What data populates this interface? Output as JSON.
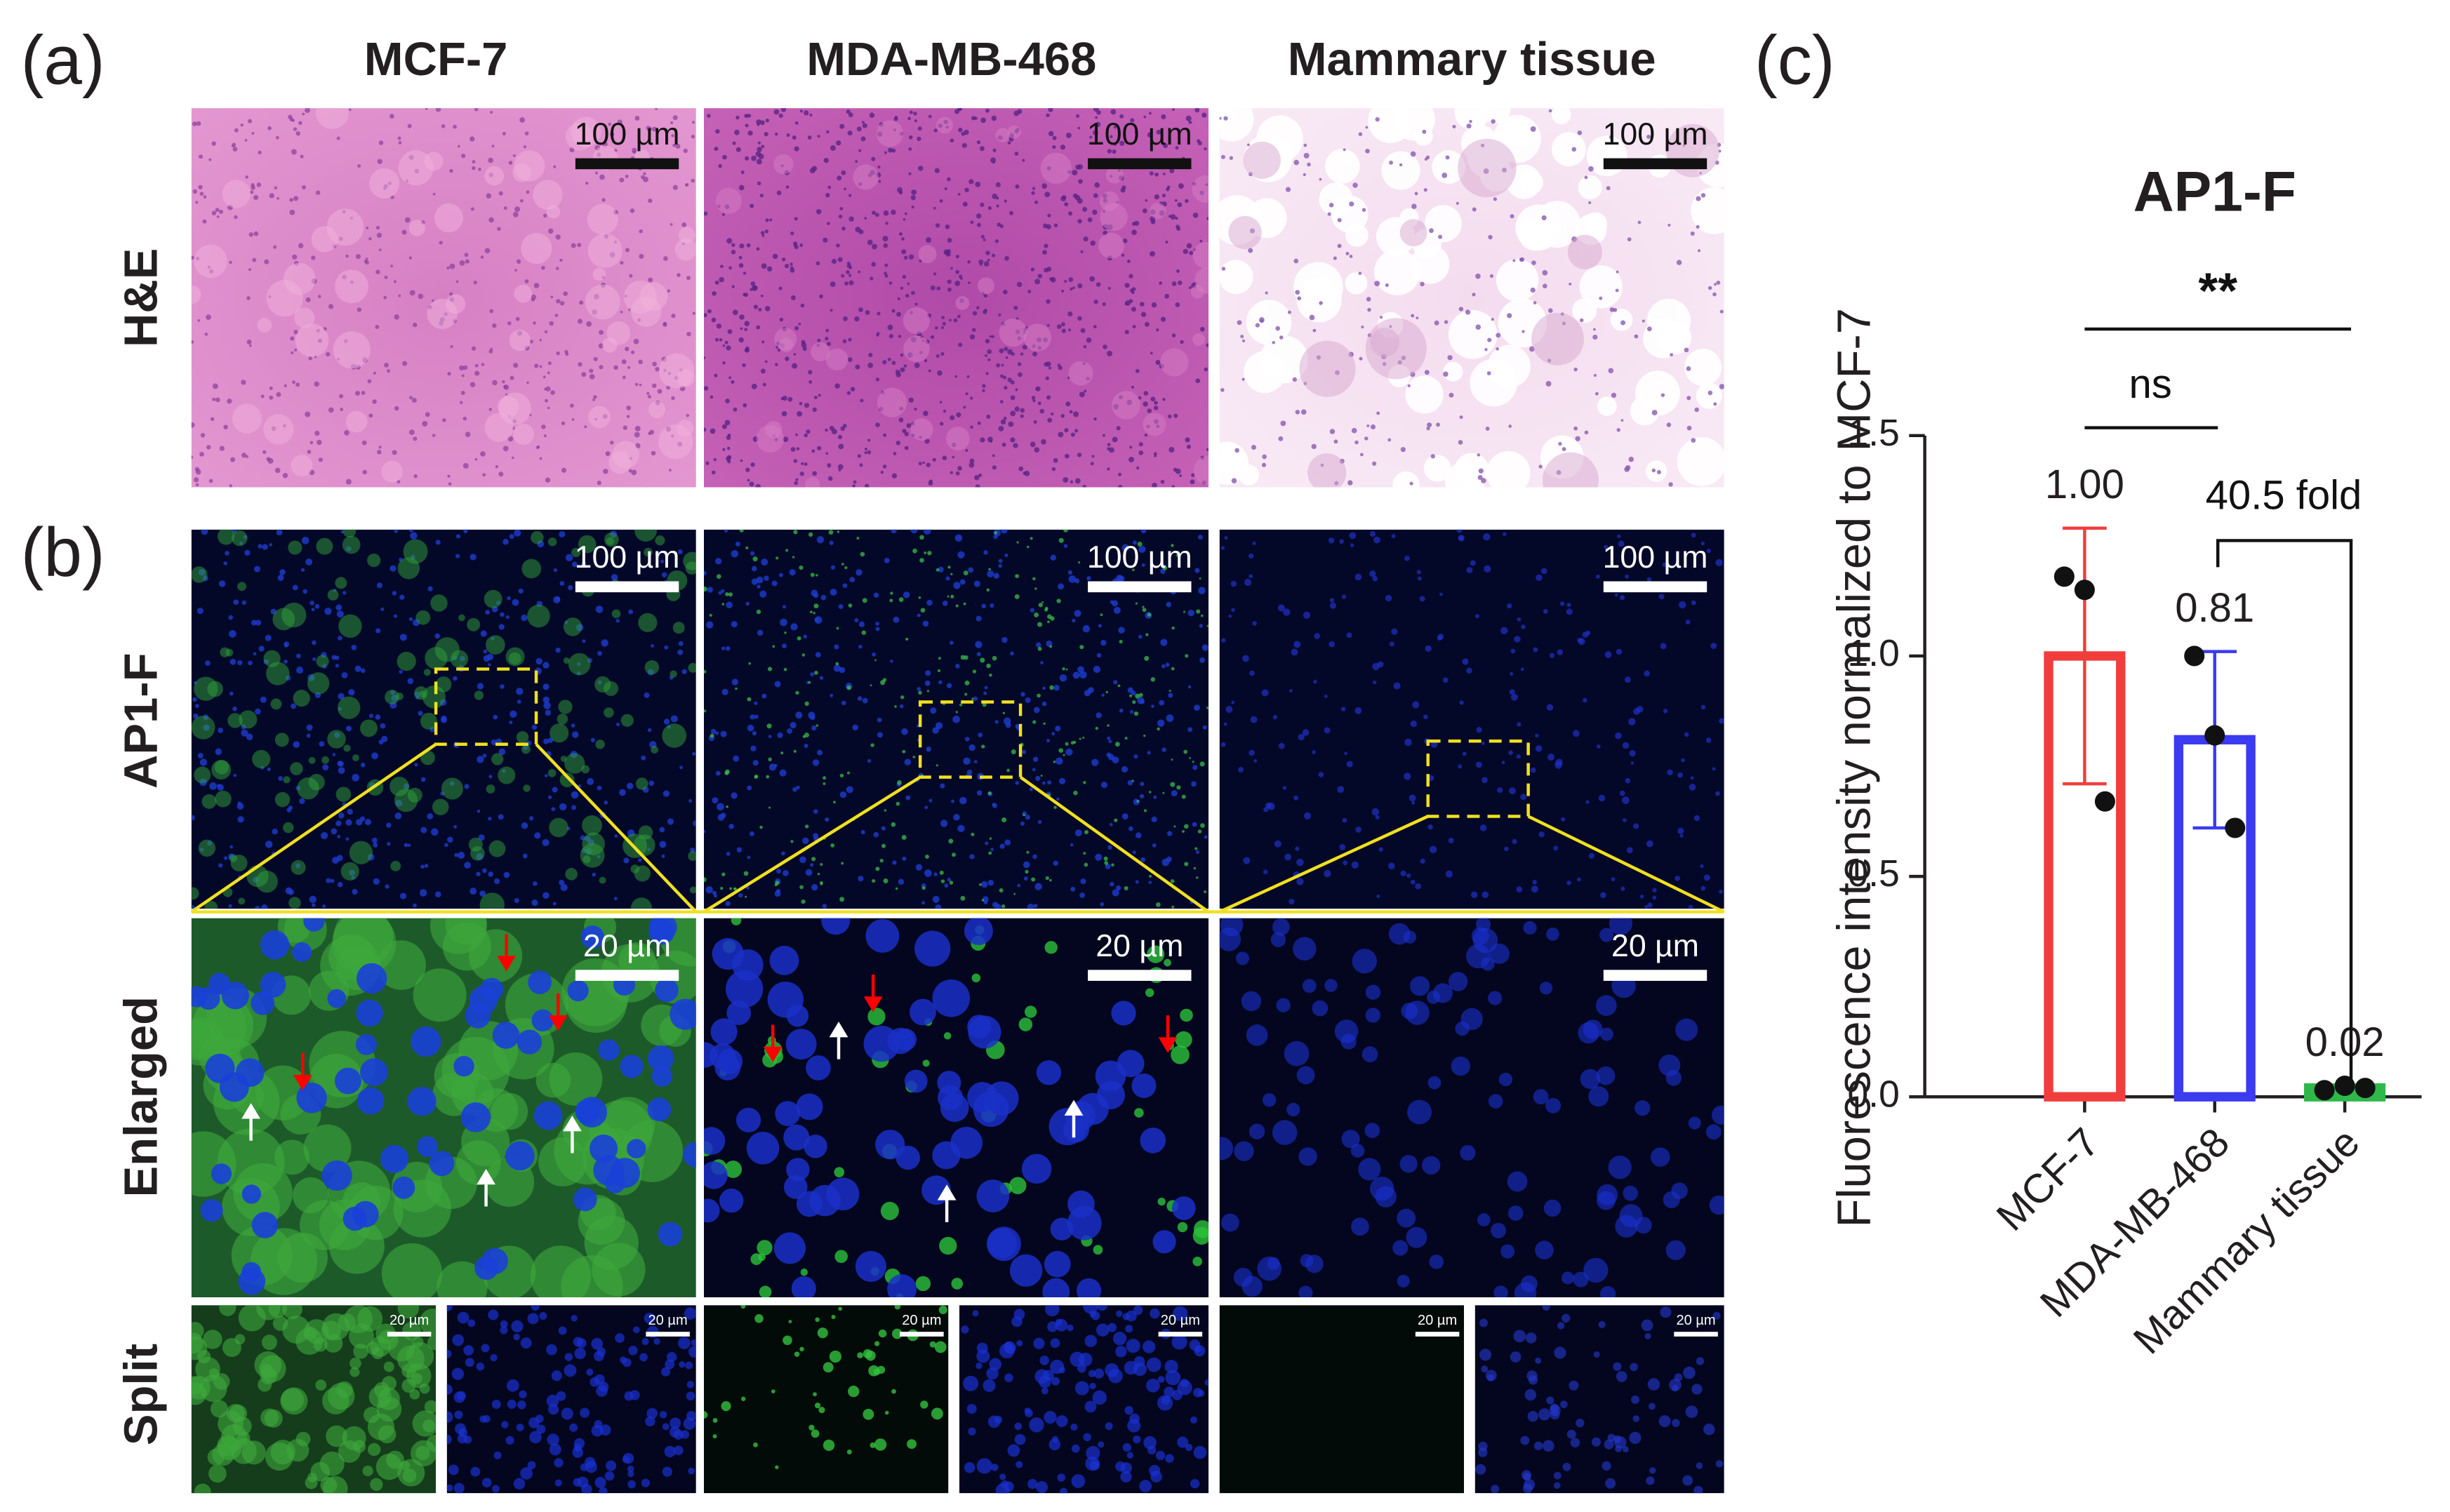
{
  "panel_labels": [
    "(a)",
    "(b)",
    "(c)"
  ],
  "columns": [
    "MCF-7",
    "MDA-MB-468",
    "Mammary tissue"
  ],
  "rows": [
    "H&E",
    "AP1-F",
    "Enlarged",
    "Split"
  ],
  "scale_bars": [
    "100 µm",
    "20 µm"
  ],
  "chart_data": {
    "type": "bar",
    "title": "AP1-F",
    "y_label": "Fluorescence intensity normalized to MCF-7",
    "categories": [
      "MCF-7",
      "MDA-MB-468",
      "Mammary tissue"
    ],
    "values": [
      1.0,
      0.81,
      0.02
    ],
    "value_labels": [
      "1.00",
      "0.81",
      "0.02"
    ],
    "errors": [
      0.29,
      0.2,
      0.005
    ],
    "points": [
      [
        1.18,
        1.15,
        0.67
      ],
      [
        1.0,
        0.82,
        0.61
      ],
      [
        0.015,
        0.025,
        0.02
      ]
    ],
    "colors": [
      "#f23d3d",
      "#3b3bf0",
      "#2fb84a"
    ],
    "ylim": [
      0,
      1.5
    ],
    "yticks": [
      {
        "value": 0,
        "label": "0.0"
      },
      {
        "value": 0.5,
        "label": "0.5"
      },
      {
        "value": 1,
        "label": "1.0"
      },
      {
        "value": 1.5,
        "label": "1.5"
      }
    ],
    "annotations": [
      "**",
      "ns",
      "40.5 fold"
    ]
  }
}
